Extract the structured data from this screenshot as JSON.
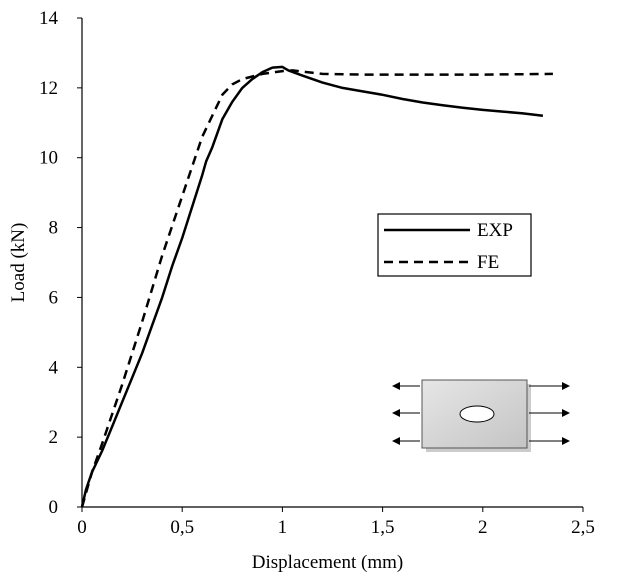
{
  "chart_data": {
    "type": "line",
    "title": "",
    "xlabel": "Displacement (mm)",
    "ylabel": "Load (kN)",
    "xlim": [
      0,
      2.5
    ],
    "ylim": [
      0,
      14
    ],
    "grid": false,
    "legend_position": "center-right",
    "x_ticks": [
      {
        "value": 0,
        "label": "0"
      },
      {
        "value": 0.5,
        "label": "0,5"
      },
      {
        "value": 1,
        "label": "1"
      },
      {
        "value": 1.5,
        "label": "1,5"
      },
      {
        "value": 2,
        "label": "2"
      },
      {
        "value": 2.5,
        "label": "2,5"
      }
    ],
    "y_ticks": [
      {
        "value": 0,
        "label": "0"
      },
      {
        "value": 2,
        "label": "2"
      },
      {
        "value": 4,
        "label": "4"
      },
      {
        "value": 6,
        "label": "6"
      },
      {
        "value": 8,
        "label": "8"
      },
      {
        "value": 10,
        "label": "10"
      },
      {
        "value": 12,
        "label": "12"
      },
      {
        "value": 14,
        "label": "14"
      }
    ],
    "series": [
      {
        "name": "EXP",
        "style": "solid",
        "color": "#000000",
        "points": [
          [
            0,
            0
          ],
          [
            0.02,
            0.5
          ],
          [
            0.05,
            1.0
          ],
          [
            0.1,
            1.6
          ],
          [
            0.15,
            2.3
          ],
          [
            0.2,
            3.0
          ],
          [
            0.25,
            3.7
          ],
          [
            0.3,
            4.4
          ],
          [
            0.35,
            5.2
          ],
          [
            0.4,
            6.0
          ],
          [
            0.45,
            6.9
          ],
          [
            0.5,
            7.7
          ],
          [
            0.55,
            8.6
          ],
          [
            0.6,
            9.5
          ],
          [
            0.62,
            9.9
          ],
          [
            0.65,
            10.3
          ],
          [
            0.7,
            11.1
          ],
          [
            0.75,
            11.6
          ],
          [
            0.8,
            12.0
          ],
          [
            0.85,
            12.25
          ],
          [
            0.9,
            12.45
          ],
          [
            0.95,
            12.58
          ],
          [
            1.0,
            12.6
          ],
          [
            1.03,
            12.5
          ],
          [
            1.1,
            12.35
          ],
          [
            1.2,
            12.15
          ],
          [
            1.3,
            12.0
          ],
          [
            1.4,
            11.9
          ],
          [
            1.5,
            11.8
          ],
          [
            1.6,
            11.68
          ],
          [
            1.7,
            11.58
          ],
          [
            1.8,
            11.5
          ],
          [
            1.9,
            11.43
          ],
          [
            2.0,
            11.37
          ],
          [
            2.1,
            11.32
          ],
          [
            2.2,
            11.27
          ],
          [
            2.3,
            11.2
          ]
        ]
      },
      {
        "name": "FE",
        "style": "dashed",
        "color": "#000000",
        "points": [
          [
            0,
            0
          ],
          [
            0.05,
            1.0
          ],
          [
            0.1,
            1.8
          ],
          [
            0.2,
            3.5
          ],
          [
            0.3,
            5.3
          ],
          [
            0.4,
            7.2
          ],
          [
            0.5,
            8.9
          ],
          [
            0.6,
            10.6
          ],
          [
            0.7,
            11.8
          ],
          [
            0.75,
            12.1
          ],
          [
            0.8,
            12.25
          ],
          [
            0.9,
            12.4
          ],
          [
            1.0,
            12.48
          ],
          [
            1.05,
            12.5
          ],
          [
            1.2,
            12.4
          ],
          [
            1.4,
            12.38
          ],
          [
            1.6,
            12.38
          ],
          [
            1.8,
            12.38
          ],
          [
            2.0,
            12.38
          ],
          [
            2.2,
            12.39
          ],
          [
            2.35,
            12.4
          ]
        ]
      }
    ]
  }
}
